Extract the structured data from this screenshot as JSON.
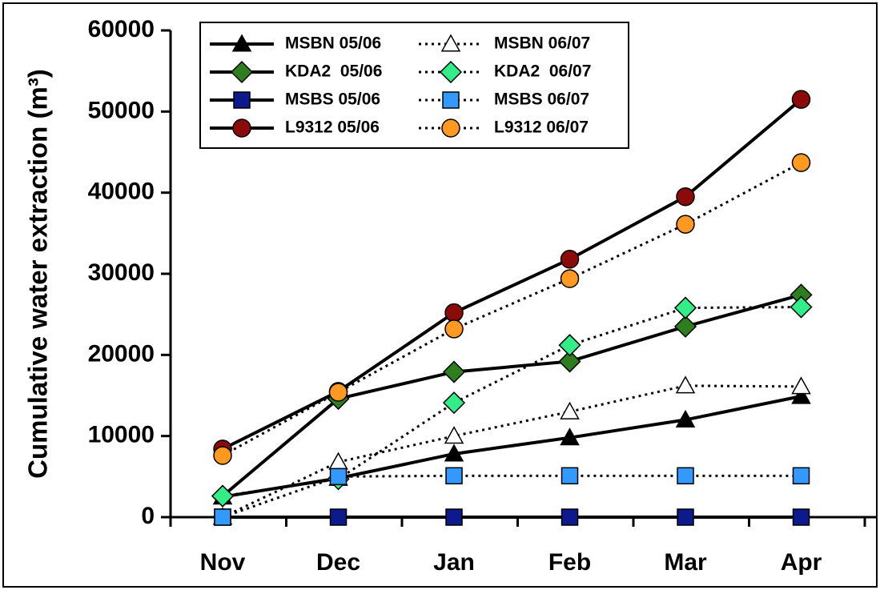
{
  "chart_data": {
    "type": "line",
    "y_label": "Cumulative water extraction (m³)",
    "categories": [
      "Nov",
      "Dec",
      "Jan",
      "Feb",
      "Mar",
      "Apr"
    ],
    "ylim": [
      0,
      60000
    ],
    "yticks": [
      0,
      10000,
      20000,
      30000,
      40000,
      50000,
      60000
    ],
    "series": [
      {
        "name": "MSBN 05/06",
        "color": "#000000",
        "marker": "triangle",
        "dash": "solid",
        "values": [
          2500,
          4800,
          7800,
          9800,
          12000,
          14900
        ]
      },
      {
        "name": "MSBN 06/07",
        "color": "#ffffff",
        "marker": "triangle",
        "dash": "dotted",
        "values": [
          0,
          6800,
          10000,
          13000,
          16200,
          16100
        ]
      },
      {
        "name": "KDA2  05/06",
        "color": "#2e7d1e",
        "marker": "diamond",
        "dash": "solid",
        "values": [
          2600,
          14600,
          17900,
          19200,
          23500,
          27400
        ]
      },
      {
        "name": "KDA2  06/07",
        "color": "#33ee88",
        "marker": "diamond",
        "dash": "dotted",
        "values": [
          2600,
          4700,
          14100,
          21200,
          25800,
          25900
        ]
      },
      {
        "name": "MSBS 05/06",
        "color": "#0d1a8c",
        "marker": "square",
        "dash": "solid",
        "values": [
          0,
          0,
          0,
          0,
          0,
          0
        ]
      },
      {
        "name": "MSBS 06/07",
        "color": "#3399ff",
        "marker": "square",
        "dash": "dotted",
        "values": [
          0,
          5000,
          5100,
          5100,
          5100,
          5100
        ]
      },
      {
        "name": "L9312 05/06",
        "color": "#8b0a0a",
        "marker": "circle",
        "dash": "solid",
        "values": [
          8400,
          15500,
          25200,
          31800,
          39500,
          51500
        ]
      },
      {
        "name": "L9312 06/07",
        "color": "#ff9922",
        "marker": "circle",
        "dash": "dotted",
        "values": [
          7600,
          15400,
          23200,
          29400,
          36100,
          43700
        ]
      }
    ]
  }
}
